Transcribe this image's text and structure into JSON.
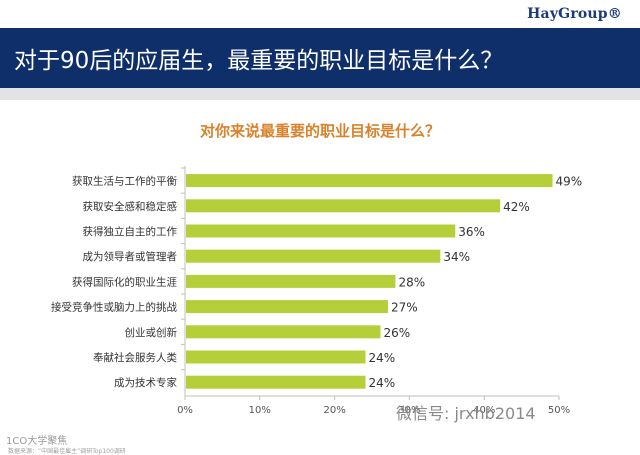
{
  "header": {
    "logo": "HayGroup®",
    "title": "对于90后的应届生，最重要的职业目标是什么？"
  },
  "footer": {
    "left_mark": "1CO大学聚焦",
    "watermark": "微信号: jrxhb2014",
    "source": "数据来源：“中国最佳雇主”调研Top100调研"
  },
  "colors": {
    "bar": "#b4cf3a",
    "title_bar": "#0f2f6a",
    "chart_title": "#d9822b"
  },
  "chart_data": {
    "type": "bar",
    "orientation": "horizontal",
    "title": "对你来说最重要的职业目标是什么？",
    "categories": [
      "获取生活与工作的平衡",
      "获取安全感和稳定感",
      "获得独立自主的工作",
      "成为领导者或管理者",
      "获得国际化的职业生涯",
      "接受竞争性或脑力上的挑战",
      "创业或创新",
      "奉献社会服务人类",
      "成为技术专家"
    ],
    "values": [
      49,
      42,
      36,
      34,
      28,
      27,
      26,
      24,
      24
    ],
    "value_labels": [
      "49%",
      "42%",
      "36%",
      "34%",
      "28%",
      "27%",
      "26%",
      "24%",
      "24%"
    ],
    "xlim": [
      0,
      50
    ],
    "xticks": [
      "0%",
      "10%",
      "20%",
      "30%",
      "40%",
      "50%"
    ],
    "grid": false,
    "legend": "none"
  }
}
